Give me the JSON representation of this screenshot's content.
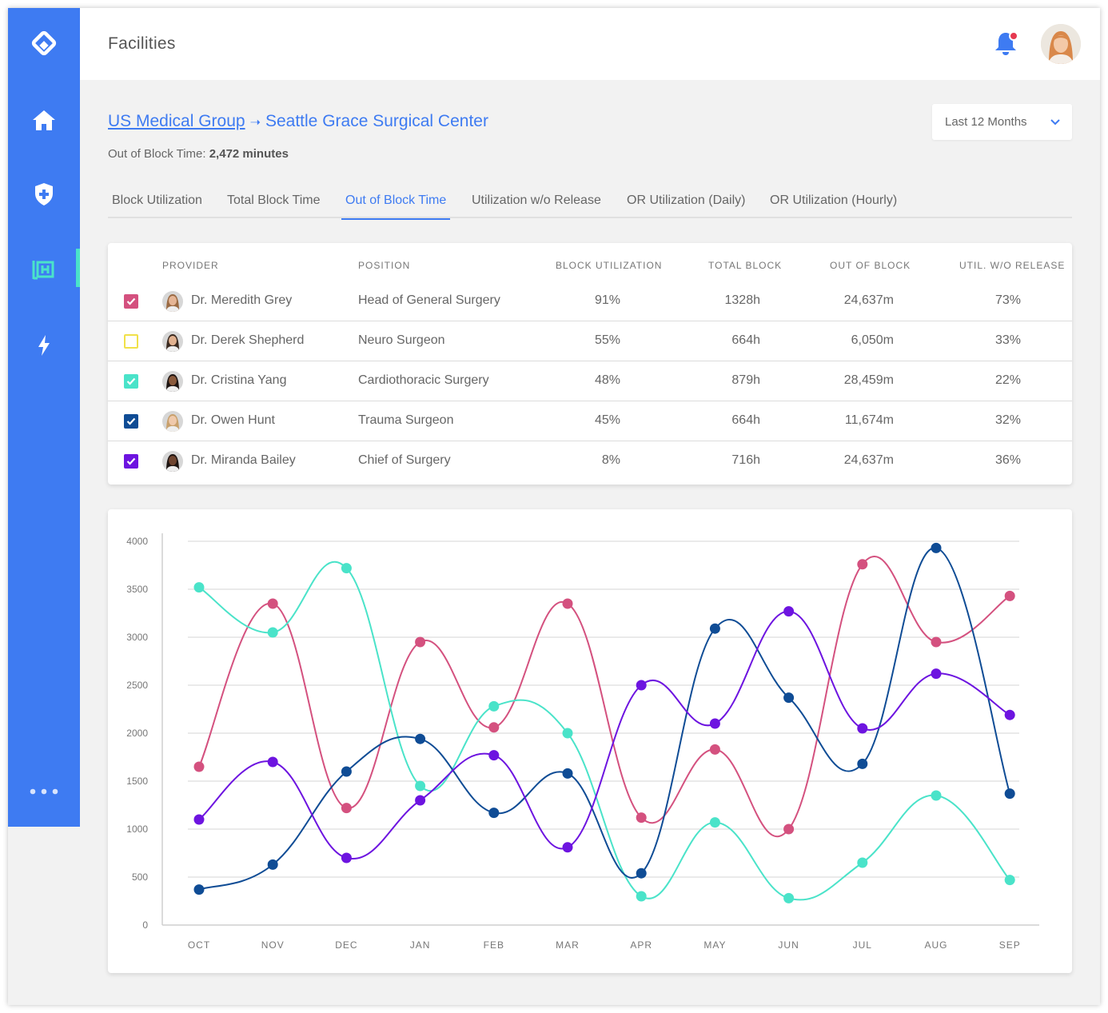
{
  "header": {
    "title": "Facilities"
  },
  "breadcrumb": {
    "parent": "US Medical Group",
    "arrow": "➝",
    "current": "Seattle Grace Surgical Center"
  },
  "summary": {
    "label": "Out of Block Time:",
    "value": "2,472 minutes"
  },
  "range": {
    "selected": "Last 12 Months"
  },
  "tabs": [
    {
      "label": "Block Utilization"
    },
    {
      "label": "Total Block Time"
    },
    {
      "label": "Out of Block Time",
      "active": true
    },
    {
      "label": "Utilization w/o Release"
    },
    {
      "label": "OR Utilization (Daily)"
    },
    {
      "label": "OR Utilization (Hourly)"
    }
  ],
  "table": {
    "headers": {
      "provider": "PROVIDER",
      "position": "POSITION",
      "block_util": "BLOCK UTILIZATION",
      "total_block": "TOTAL BLOCK",
      "out_of_block": "OUT OF BLOCK",
      "util_wo_release": "UTIL. W/O RELEASE"
    },
    "rows": [
      {
        "name": "Dr. Meredith Grey",
        "position": "Head of General Surgery",
        "block_util": "91%",
        "total_block": "1328h",
        "out_of_block": "24,637m",
        "util_wo_release": "73%",
        "color": "#d4517f",
        "checked": true
      },
      {
        "name": "Dr. Derek Shepherd",
        "position": "Neuro Surgeon",
        "block_util": "55%",
        "total_block": "664h",
        "out_of_block": "6,050m",
        "util_wo_release": "33%",
        "color": "#f1e14a",
        "checked": false
      },
      {
        "name": "Dr. Cristina Yang",
        "position": "Cardiothoracic Surgery",
        "block_util": "48%",
        "total_block": "879h",
        "out_of_block": "28,459m",
        "util_wo_release": "22%",
        "color": "#4ae3c9",
        "checked": true
      },
      {
        "name": "Dr. Owen Hunt",
        "position": "Trauma Surgeon",
        "block_util": "45%",
        "total_block": "664h",
        "out_of_block": "11,674m",
        "util_wo_release": "32%",
        "color": "#0f4c95",
        "checked": true
      },
      {
        "name": "Dr. Miranda Bailey",
        "position": "Chief of Surgery",
        "block_util": "8%",
        "total_block": "716h",
        "out_of_block": "24,637m",
        "util_wo_release": "36%",
        "color": "#6d14e0",
        "checked": true
      }
    ]
  },
  "colors": {
    "accent": "#3e7bf2",
    "teal": "#4ae3c9",
    "notification": "#e63950"
  },
  "icons": {
    "logo": "diamond-logo-icon",
    "home": "home-icon",
    "shield": "shield-plus-icon",
    "hospital": "hospital-icon",
    "bolt": "lightning-icon",
    "more": "more-dots-icon",
    "bell": "bell-icon",
    "chevron": "chevron-down-icon"
  },
  "chart_data": {
    "type": "line",
    "title": "",
    "xlabel": "",
    "ylabel": "",
    "ylim": [
      0,
      4000
    ],
    "yticks": [
      0,
      500,
      1000,
      1500,
      2000,
      2500,
      3000,
      3500,
      4000
    ],
    "categories": [
      "OCT",
      "NOV",
      "DEC",
      "JAN",
      "FEB",
      "MAR",
      "APR",
      "MAY",
      "JUN",
      "JUL",
      "AUG",
      "SEP"
    ],
    "grid": true,
    "series": [
      {
        "name": "Dr. Meredith Grey",
        "color": "#d4517f",
        "values": [
          1650,
          3350,
          1220,
          2950,
          2060,
          3350,
          1120,
          1830,
          1000,
          3760,
          2950,
          3430
        ]
      },
      {
        "name": "Dr. Cristina Yang",
        "color": "#4ae3c9",
        "values": [
          3520,
          3050,
          3720,
          1450,
          2280,
          2000,
          300,
          1070,
          280,
          650,
          1350,
          470
        ]
      },
      {
        "name": "Dr. Owen Hunt",
        "color": "#0f4c95",
        "values": [
          370,
          630,
          1600,
          1940,
          1170,
          1580,
          540,
          3090,
          2370,
          1680,
          3930,
          1370
        ]
      },
      {
        "name": "Dr. Miranda Bailey",
        "color": "#6d14e0",
        "values": [
          1100,
          1700,
          700,
          1300,
          1770,
          810,
          2500,
          2100,
          3270,
          2050,
          2620,
          2190
        ]
      }
    ]
  }
}
